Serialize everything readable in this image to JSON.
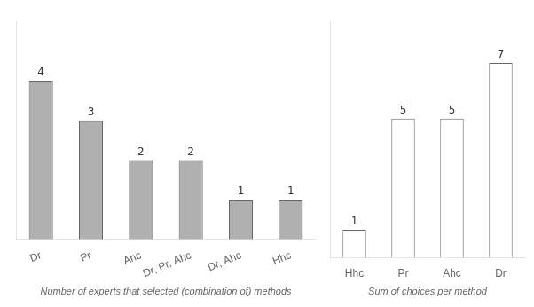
{
  "chart_data": [
    {
      "type": "bar",
      "categories": [
        "Dr",
        "Pr",
        "Ahc",
        "Dr, Pr, Ahc",
        "Dr, Ahc",
        "Hhc"
      ],
      "values": [
        4,
        3,
        2,
        2,
        1,
        1
      ],
      "color": "#b0b0b0",
      "xlabel": "Number of experts that selected (combination of) methods",
      "ylim": [
        0,
        5.5
      ],
      "tick_labels": "x",
      "grid": false,
      "data_labels": true
    },
    {
      "type": "bar",
      "categories": [
        "Hhc",
        "Pr",
        "Ahc",
        "Dr"
      ],
      "values": [
        1,
        5,
        5,
        7
      ],
      "color": "#ffffff",
      "xlabel": "Sum of choices per method",
      "ylim": [
        0,
        8.5
      ],
      "tick_labels": "x",
      "grid": false,
      "data_labels": true
    }
  ]
}
